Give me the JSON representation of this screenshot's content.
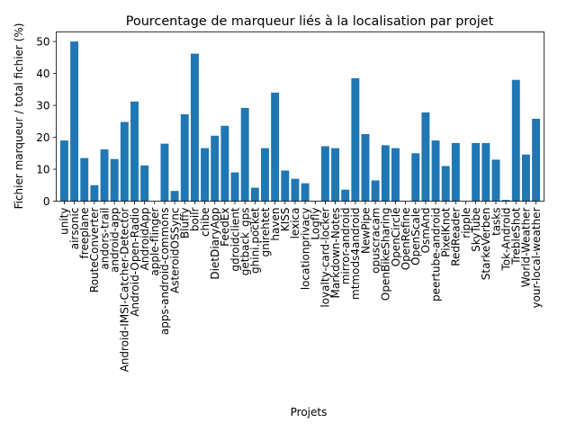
{
  "chart_data": {
    "type": "bar",
    "title": "Pourcentage de marqueur liés à la localisation par projet",
    "xlabel": "Projets",
    "ylabel": "Fichier marqueur / total fichier (%)",
    "ylim": [
      0,
      53
    ],
    "yticks": [
      0,
      10,
      20,
      30,
      40,
      50
    ],
    "grid": false,
    "bar_color": "#1f77b4",
    "categories": [
      "unity",
      "airsonic",
      "freeplane",
      "RouteConverter",
      "andors-trail",
      "android-app",
      "Android-IMSI-Catcher-Detector",
      "Android-Open-Radio",
      "AndroidApp",
      "apple-flinger",
      "apps-android-commons",
      "AsteroidOSSync",
      "Bluffy",
      "boilr",
      "chibe",
      "DietDiaryApp",
      "FeedEx",
      "gdroidclient",
      "getback_gps",
      "ghini.pocket",
      "gnirehtet",
      "haven",
      "KISS",
      "lexica",
      "locationprivacy",
      "Logfly",
      "loyalty-card-locker",
      "Markdown-Notes",
      "mirror-android",
      "mtmods4android",
      "NewPipe",
      "opuscracam",
      "OpenBikeSharing",
      "OpenCircle",
      "OpenRefine",
      "OpenScale",
      "OsmAnd",
      "peertube-android",
      "PixelKnot",
      "RedReader",
      "ripple",
      "SkyTube",
      "StarkeVerben",
      "tasks",
      "Tok-Android",
      "TrebleShot",
      "World-Weather",
      "your-local-weather"
    ],
    "values": [
      19,
      50,
      13.5,
      5,
      16.2,
      13.2,
      24.8,
      31.2,
      11.2,
      0,
      18,
      3.2,
      27.2,
      46.2,
      16.6,
      20.5,
      23.6,
      9,
      29.2,
      4.2,
      16.6,
      34,
      9.6,
      7,
      5.6,
      0,
      17.2,
      16.6,
      3.6,
      38.5,
      21,
      6.5,
      17.5,
      16.6,
      0,
      15,
      27.8,
      19,
      11,
      18.2,
      0,
      18.2,
      18.2,
      13,
      0.4,
      38,
      14.6,
      25.8
    ]
  }
}
